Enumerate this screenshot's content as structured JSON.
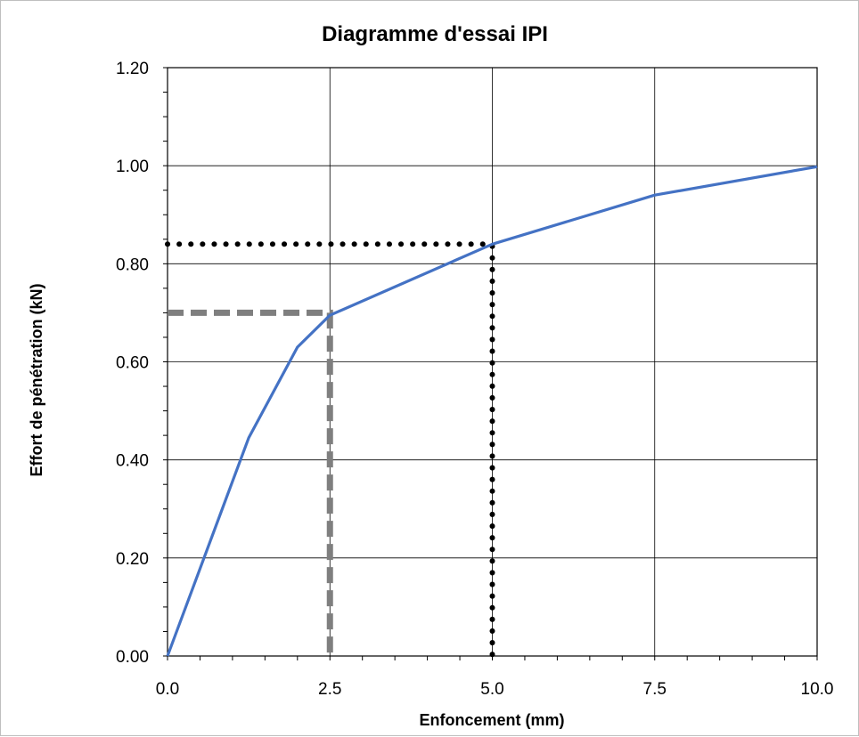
{
  "chart_data": {
    "type": "line",
    "title": "Diagramme d'essai IPI",
    "xlabel": "Enfoncement (mm)",
    "ylabel": "Effort de pénétration (kN)",
    "xlim": [
      0,
      10
    ],
    "ylim": [
      0,
      1.2
    ],
    "x_ticks": [
      "0.0",
      "2.5",
      "5.0",
      "7.5",
      "10.0"
    ],
    "y_ticks": [
      "0.00",
      "0.20",
      "0.40",
      "0.60",
      "0.80",
      "1.00",
      "1.20"
    ],
    "grid": true,
    "series": [
      {
        "color": "#4472c4",
        "style": "solid",
        "x": [
          0,
          1.25,
          2.0,
          2.5,
          5.0,
          7.5,
          10.0
        ],
        "y": [
          0,
          0.445,
          0.63,
          0.695,
          0.84,
          0.94,
          0.998
        ]
      }
    ],
    "reference_lines": [
      {
        "color": "#7f7f7f",
        "style": "dashed",
        "x": [
          0,
          2.5,
          2.5
        ],
        "y": [
          0.7,
          0.7,
          0
        ]
      },
      {
        "color": "#000000",
        "style": "dotted",
        "x": [
          0,
          5.0,
          5.0
        ],
        "y": [
          0.84,
          0.84,
          0
        ]
      }
    ]
  }
}
